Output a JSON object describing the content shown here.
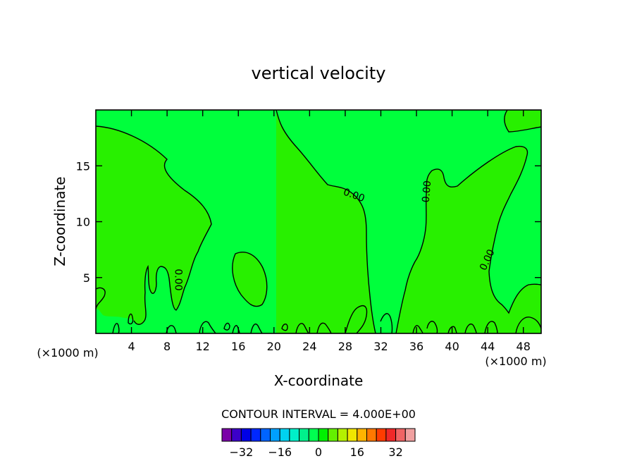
{
  "chart_data": {
    "type": "contour",
    "title": "vertical velocity",
    "xlabel": "X-coordinate",
    "ylabel": "Z-coordinate",
    "x_unit": "(×1000 m)",
    "y_unit": "(×1000 m)",
    "xlim": [
      0,
      50
    ],
    "ylim": [
      0,
      20
    ],
    "x_ticks": [
      4,
      8,
      12,
      16,
      20,
      24,
      28,
      32,
      36,
      40,
      44,
      48
    ],
    "y_ticks": [
      5,
      10,
      15
    ],
    "contour_labels": [
      {
        "text": "0.00",
        "x": 9.3,
        "y": 4.8
      },
      {
        "text": "0.00",
        "x": 29.0,
        "y": 12.4
      },
      {
        "text": "0.00",
        "x": 37.1,
        "y": 12.7
      },
      {
        "text": "0.00",
        "x": 43.9,
        "y": 6.6
      }
    ],
    "contour_interval_text": "CONTOUR INTERVAL = 4.000E+00",
    "colorbar": {
      "colors": [
        "#7a00a8",
        "#3c00c8",
        "#0000e6",
        "#0028ff",
        "#0064ff",
        "#00a0ff",
        "#00d2f0",
        "#00f0c8",
        "#00f08c",
        "#00ff50",
        "#00f000",
        "#64f000",
        "#b4f000",
        "#f0e600",
        "#ffb400",
        "#ff7800",
        "#ff3c00",
        "#f02828",
        "#f06464",
        "#f0a0a0"
      ],
      "range": [
        -40,
        40
      ],
      "tick_values": [
        -32,
        -16,
        0,
        16,
        32
      ],
      "tick_labels": [
        "−32",
        "−16",
        "0",
        "16",
        "32"
      ]
    },
    "field_colors": {
      "background": "#00ff3c",
      "positive_regions": "#28f000"
    }
  }
}
